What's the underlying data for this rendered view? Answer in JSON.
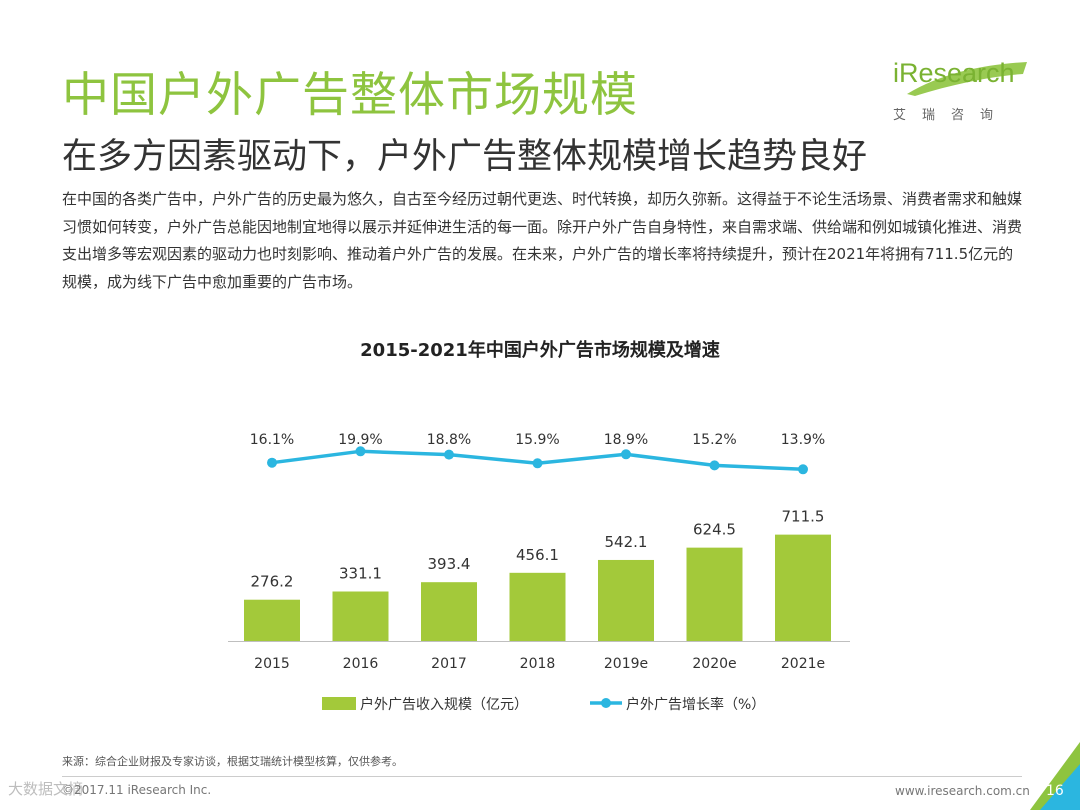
{
  "header": {
    "title": "中国户外广告整体市场规模",
    "subtitle": "在多方因素驱动下，户外广告整体规模增长趋势良好"
  },
  "logo": {
    "name": "iResearch",
    "sub": "艾瑞咨询"
  },
  "paragraph": "在中国的各类广告中，户外广告的历史最为悠久，自古至今经历过朝代更迭、时代转换，却历久弥新。这得益于不论生活场景、消费者需求和触媒习惯如何转变，户外广告总能因地制宜地得以展示并延伸进生活的每一面。除开户外广告自身特性，来自需求端、供给端和例如城镇化推进、消费支出增多等宏观因素的驱动力也时刻影响、推动着户外广告的发展。在未来，户外广告的增长率将持续提升，预计在2021年将拥有711.5亿元的规模，成为线下广告中愈加重要的广告市场。",
  "chart_data": {
    "type": "bar",
    "title": "2015-2021年中国户外广告市场规模及增速",
    "categories": [
      "2015",
      "2016",
      "2017",
      "2018",
      "2019e",
      "2020e",
      "2021e"
    ],
    "series": [
      {
        "name": "户外广告收入规模（亿元）",
        "type": "bar",
        "values": [
          276.2,
          331.1,
          393.4,
          456.1,
          542.1,
          624.5,
          711.5
        ],
        "labels": [
          "276.2",
          "331.1",
          "393.4",
          "456.1",
          "542.1",
          "624.5",
          "711.5"
        ],
        "color": "#a3c93a"
      },
      {
        "name": "户外广告增长率（%）",
        "type": "line",
        "values": [
          16.1,
          19.9,
          18.8,
          15.9,
          18.9,
          15.2,
          13.9
        ],
        "labels": [
          "16.1%",
          "19.9%",
          "18.8%",
          "15.9%",
          "18.9%",
          "15.2%",
          "13.9%"
        ],
        "color": "#2bb6e0"
      }
    ],
    "legend_position": "bottom",
    "grid": false
  },
  "footer": {
    "source": "来源：综合企业财报及专家访谈，根据艾瑞统计模型核算，仅供参考。",
    "copyright": "©2017.11 iResearch Inc.",
    "website": "www.iresearch.com.cn",
    "page_number": "16",
    "watermark": "大数据文摘"
  }
}
